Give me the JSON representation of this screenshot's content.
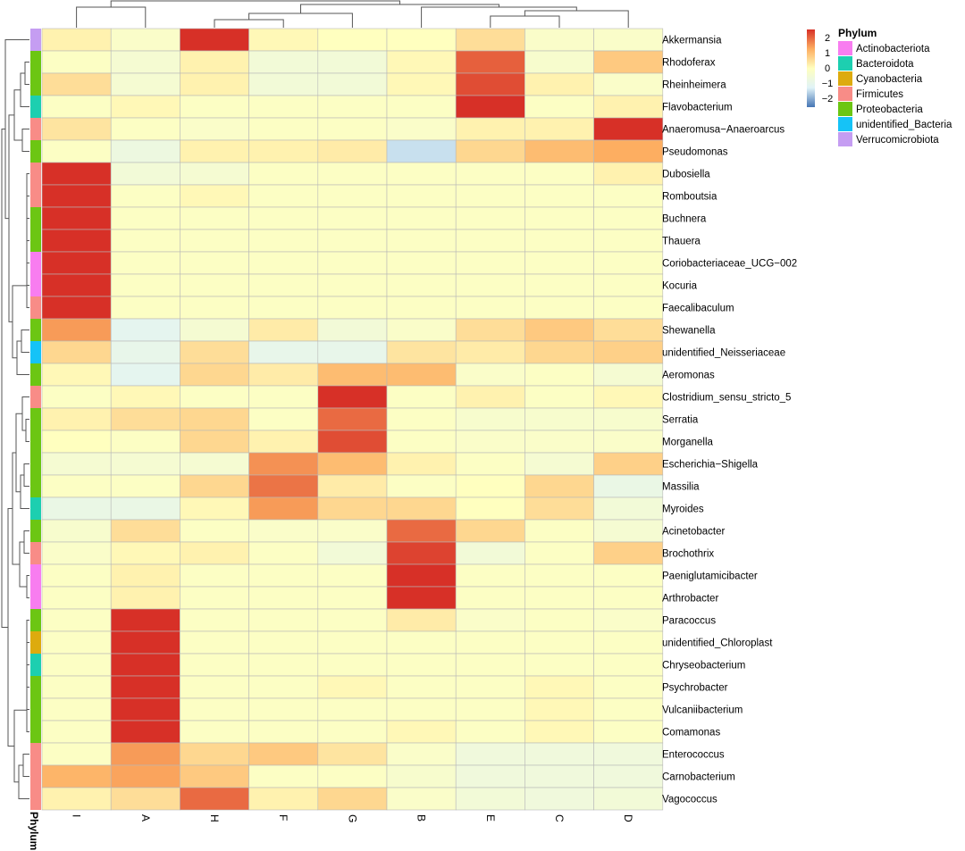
{
  "colors": {
    "scale_low": "#4575b4",
    "scale_lowmid": "#e0f3f8",
    "scale_mid": "#ffffbf",
    "scale_highmid": "#fdae61",
    "scale_high": "#d73027",
    "grid": "#b8b8b8",
    "dendrogram": "#555555"
  },
  "legend": {
    "scale_ticks": [
      "2",
      "1",
      "0",
      "−1",
      "−2"
    ],
    "phylum_title": "Phylum",
    "phylum_items": [
      {
        "label": "Actinobacteriota",
        "color": "#f87df0"
      },
      {
        "label": "Bacteroidota",
        "color": "#1dcfb0"
      },
      {
        "label": "Cyanobacteria",
        "color": "#ddab0e"
      },
      {
        "label": "Firmicutes",
        "color": "#f88c87"
      },
      {
        "label": "Proteobacteria",
        "color": "#6cc613"
      },
      {
        "label": "unidentified_Bacteria",
        "color": "#15c3f7"
      },
      {
        "label": "Verrucomicrobiota",
        "color": "#c59df2"
      }
    ]
  },
  "annotation_label": "Phylum",
  "chart_data": {
    "type": "heatmap",
    "title": "",
    "columns": [
      "I",
      "A",
      "H",
      "F",
      "G",
      "B",
      "E",
      "C",
      "D"
    ],
    "rows": [
      "Akkermansia",
      "Rhodoferax",
      "Rheinheimera",
      "Flavobacterium",
      "Anaeromusa−Anaeroarcus",
      "Pseudomonas",
      "Dubosiella",
      "Romboutsia",
      "Buchnera",
      "Thauera",
      "Coriobacteriaceae_UCG−002",
      "Kocuria",
      "Faecalibaculum",
      "Shewanella",
      "unidentified_Neisseriaceae",
      "Aeromonas",
      "Clostridium_sensu_stricto_5",
      "Serratia",
      "Morganella",
      "Escherichia−Shigella",
      "Massilia",
      "Myroides",
      "Acinetobacter",
      "Brochothrix",
      "Paeniglutamicibacter",
      "Arthrobacter",
      "Paracoccus",
      "unidentified_Chloroplast",
      "Chryseobacterium",
      "Psychrobacter",
      "Vulcaniibacterium",
      "Comamonas",
      "Enterococcus",
      "Carnobacterium",
      "Vagococcus"
    ],
    "row_phylum": [
      "Verrucomicrobiota",
      "Proteobacteria",
      "Proteobacteria",
      "Bacteroidota",
      "Firmicutes",
      "Proteobacteria",
      "Firmicutes",
      "Firmicutes",
      "Proteobacteria",
      "Proteobacteria",
      "Actinobacteriota",
      "Actinobacteriota",
      "Firmicutes",
      "Proteobacteria",
      "unidentified_Bacteria",
      "Proteobacteria",
      "Firmicutes",
      "Proteobacteria",
      "Proteobacteria",
      "Proteobacteria",
      "Proteobacteria",
      "Bacteroidota",
      "Proteobacteria",
      "Firmicutes",
      "Actinobacteriota",
      "Actinobacteriota",
      "Proteobacteria",
      "Cyanobacteria",
      "Bacteroidota",
      "Proteobacteria",
      "Proteobacteria",
      "Proteobacteria",
      "Firmicutes",
      "Firmicutes",
      "Firmicutes"
    ],
    "values": [
      [
        0.2,
        -0.2,
        2.5,
        0.1,
        0.0,
        0.0,
        0.5,
        -0.2,
        -0.2
      ],
      [
        -0.1,
        -0.4,
        0.2,
        -0.5,
        -0.5,
        0.1,
        2.0,
        -0.3,
        0.8
      ],
      [
        0.5,
        -0.4,
        0.2,
        -0.5,
        -0.5,
        0.1,
        2.2,
        0.2,
        -0.2
      ],
      [
        -0.1,
        0.1,
        -0.1,
        -0.1,
        -0.1,
        -0.1,
        2.6,
        -0.1,
        0.2
      ],
      [
        0.4,
        -0.1,
        -0.2,
        -0.1,
        -0.1,
        -0.2,
        0.2,
        0.2,
        2.5
      ],
      [
        -0.1,
        -0.7,
        0.2,
        0.2,
        0.3,
        -1.4,
        0.6,
        1.0,
        1.2
      ],
      [
        2.6,
        -0.5,
        -0.4,
        -0.1,
        -0.1,
        -0.1,
        -0.1,
        -0.1,
        0.2
      ],
      [
        2.6,
        -0.1,
        0.1,
        -0.1,
        -0.1,
        -0.1,
        -0.1,
        -0.1,
        -0.1
      ],
      [
        2.6,
        -0.1,
        -0.1,
        -0.1,
        -0.1,
        -0.1,
        -0.1,
        -0.1,
        -0.1
      ],
      [
        2.6,
        -0.1,
        -0.1,
        -0.1,
        -0.1,
        -0.1,
        -0.1,
        -0.1,
        -0.1
      ],
      [
        2.6,
        -0.1,
        -0.1,
        -0.1,
        -0.1,
        -0.1,
        -0.1,
        -0.1,
        -0.1
      ],
      [
        2.6,
        -0.1,
        -0.1,
        -0.1,
        -0.1,
        -0.1,
        -0.1,
        -0.1,
        -0.1
      ],
      [
        2.6,
        -0.1,
        -0.1,
        -0.1,
        -0.1,
        -0.1,
        -0.1,
        -0.1,
        -0.1
      ],
      [
        1.4,
        -1.0,
        -0.4,
        0.3,
        -0.5,
        -0.2,
        0.5,
        0.8,
        0.5
      ],
      [
        0.6,
        -0.9,
        0.5,
        -0.9,
        -0.9,
        0.4,
        0.3,
        0.6,
        0.7
      ],
      [
        0.1,
        -1.0,
        0.6,
        0.3,
        1.0,
        1.0,
        -0.2,
        -0.1,
        -0.4
      ],
      [
        -0.1,
        0.1,
        -0.1,
        -0.1,
        2.7,
        -0.1,
        0.2,
        -0.1,
        0.1
      ],
      [
        0.2,
        0.5,
        0.6,
        -0.1,
        1.9,
        -0.1,
        -0.3,
        -0.3,
        -0.3
      ],
      [
        0.0,
        -0.1,
        0.6,
        0.2,
        2.2,
        -0.1,
        -0.2,
        -0.2,
        -0.2
      ],
      [
        -0.4,
        -0.4,
        -0.4,
        1.5,
        1.0,
        0.2,
        -0.1,
        -0.4,
        0.7
      ],
      [
        -0.1,
        -0.1,
        0.6,
        1.8,
        0.3,
        -0.1,
        0.0,
        0.6,
        -0.8
      ],
      [
        -0.8,
        -0.8,
        0.1,
        1.4,
        0.6,
        0.6,
        0.0,
        0.5,
        -0.5
      ],
      [
        -0.3,
        0.5,
        -0.1,
        -0.2,
        -0.2,
        1.9,
        0.6,
        -0.1,
        -0.4
      ],
      [
        -0.2,
        0.1,
        0.2,
        -0.1,
        -0.5,
        2.3,
        -0.5,
        -0.1,
        0.7
      ],
      [
        -0.1,
        0.2,
        -0.1,
        -0.1,
        -0.1,
        2.6,
        -0.1,
        -0.1,
        -0.1
      ],
      [
        -0.1,
        0.2,
        -0.1,
        -0.1,
        -0.1,
        2.6,
        -0.1,
        -0.1,
        -0.1
      ],
      [
        -0.1,
        2.6,
        -0.1,
        -0.1,
        -0.1,
        0.3,
        -0.2,
        -0.1,
        -0.2
      ],
      [
        -0.1,
        2.6,
        -0.1,
        -0.1,
        -0.1,
        -0.1,
        -0.1,
        -0.1,
        -0.1
      ],
      [
        -0.1,
        2.6,
        -0.1,
        -0.1,
        -0.1,
        -0.1,
        -0.1,
        -0.1,
        -0.1
      ],
      [
        -0.1,
        2.6,
        -0.1,
        -0.1,
        0.1,
        -0.1,
        -0.1,
        0.1,
        -0.1
      ],
      [
        -0.1,
        2.6,
        -0.1,
        -0.1,
        -0.1,
        -0.1,
        -0.1,
        0.1,
        -0.1
      ],
      [
        -0.1,
        2.6,
        -0.1,
        -0.1,
        -0.1,
        0.1,
        -0.1,
        0.1,
        -0.1
      ],
      [
        -0.1,
        1.4,
        0.6,
        0.8,
        0.4,
        -0.2,
        -0.6,
        -0.6,
        -0.6
      ],
      [
        1.1,
        1.3,
        0.8,
        -0.1,
        -0.1,
        -0.3,
        -0.6,
        -0.6,
        -0.6
      ],
      [
        0.2,
        0.5,
        1.9,
        0.2,
        0.6,
        -0.2,
        -0.5,
        -0.6,
        -0.5
      ]
    ],
    "color_scale": {
      "min": -2.5,
      "mid": 0,
      "max": 2.5,
      "legend_ticks": [
        2,
        1,
        0,
        -1,
        -2
      ]
    },
    "row_dendrogram": true,
    "col_dendrogram": true,
    "legend_position": "top-right"
  }
}
